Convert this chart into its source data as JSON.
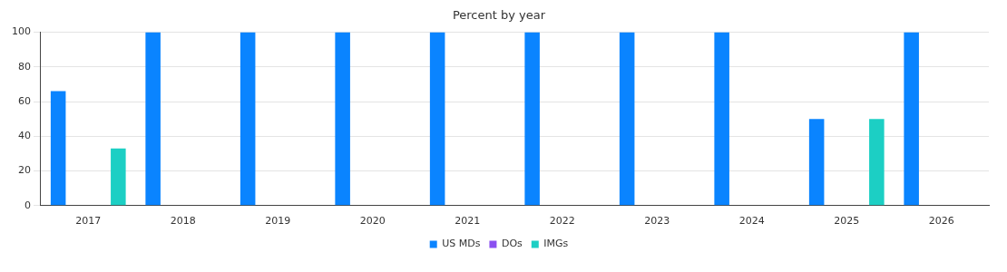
{
  "chart_data": {
    "type": "bar",
    "title": "Percent by year",
    "categories": [
      "2017",
      "2018",
      "2019",
      "2020",
      "2021",
      "2022",
      "2023",
      "2024",
      "2025",
      "2026"
    ],
    "series": [
      {
        "name": "US MDs",
        "color": "#0a84ff",
        "values": [
          66,
          100,
          100,
          100,
          100,
          100,
          100,
          100,
          50,
          100
        ]
      },
      {
        "name": "DOs",
        "color": "#8a4ff0",
        "values": [
          0,
          0,
          0,
          0,
          0,
          0,
          0,
          0,
          0,
          0
        ]
      },
      {
        "name": "IMGs",
        "color": "#1ccfc4",
        "values": [
          33,
          0,
          0,
          0,
          0,
          0,
          0,
          0,
          50,
          0
        ]
      }
    ],
    "ylim": [
      0,
      100
    ],
    "yticks": [
      0,
      20,
      40,
      60,
      80,
      100
    ],
    "grid": "y",
    "legend": "bottom"
  }
}
